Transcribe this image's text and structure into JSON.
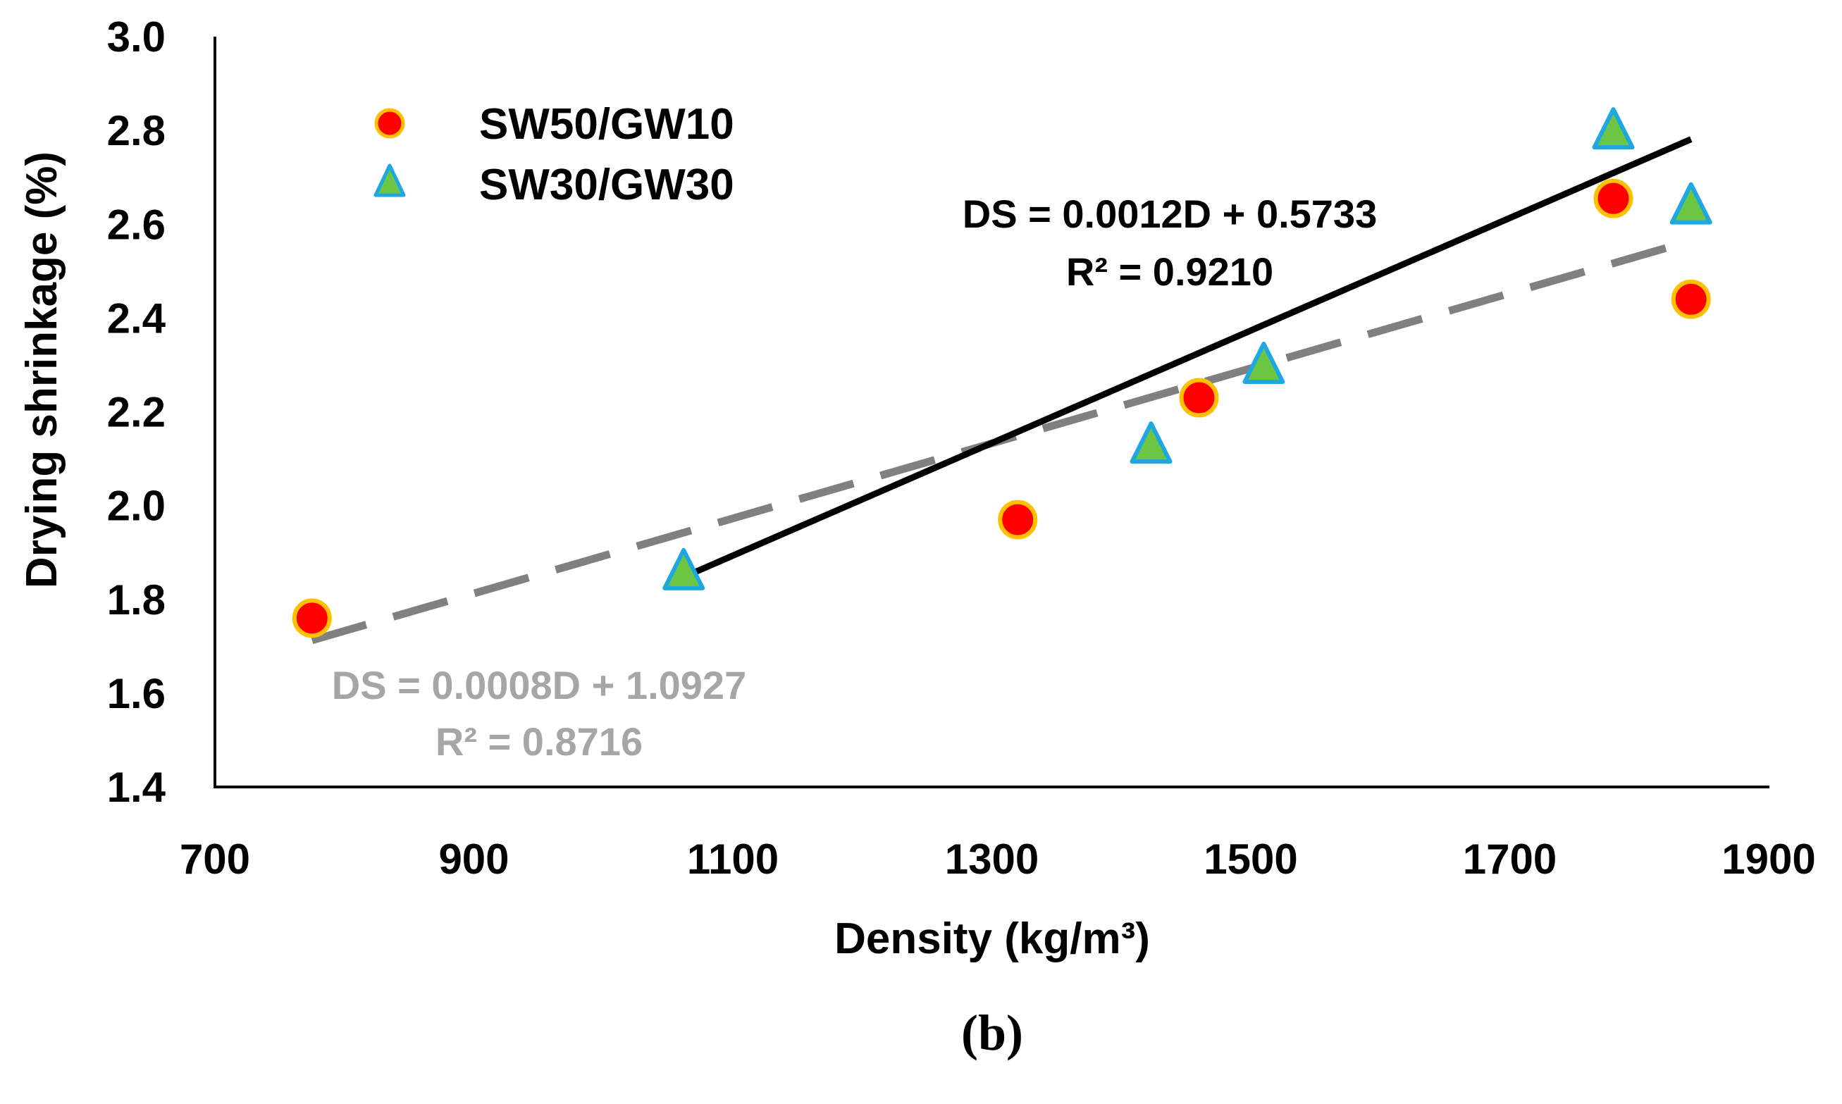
{
  "chart_data": {
    "type": "scatter",
    "title": "",
    "xlabel": "Density (kg/m³)",
    "ylabel": "Drying shrinkage (%)",
    "xlim": [
      700,
      1900
    ],
    "ylim": [
      1.4,
      3.0
    ],
    "xticks": [
      700,
      900,
      1100,
      1300,
      1500,
      1700,
      1900
    ],
    "yticks": [
      1.4,
      1.6,
      1.8,
      2.0,
      2.2,
      2.4,
      2.6,
      2.8,
      3.0
    ],
    "ytick_labels": [
      "1.4",
      "1.6",
      "1.8",
      "2.0",
      "2.2",
      "2.4",
      "2.6",
      "2.8",
      "3.0"
    ],
    "legend_position": "top-left",
    "series": [
      {
        "name": "SW50/GW10",
        "marker": "circle",
        "fill": "#ff0000",
        "edge": "#ffc000",
        "x": [
          775,
          1320,
          1460,
          1780,
          1840
        ],
        "y": [
          1.76,
          1.97,
          2.23,
          2.655,
          2.44
        ]
      },
      {
        "name": "SW30/GW30",
        "marker": "triangle",
        "fill": "#6cc644",
        "edge": "#1ea7e1",
        "x": [
          1062,
          1423,
          1510,
          1780,
          1840
        ],
        "y": [
          1.86,
          2.13,
          2.3,
          2.8,
          2.64
        ]
      }
    ],
    "trendlines": [
      {
        "series": "SW30/GW30",
        "style": "solid",
        "color": "#000000",
        "x_range": [
          1062,
          1840
        ],
        "slope": 0.0012,
        "intercept": 0.5733,
        "equation": "DS = 0.0012D + 0.5733",
        "r2": "R² = 0.9210"
      },
      {
        "series": "SW50/GW10",
        "style": "dashed",
        "color": "#808080",
        "x_range": [
          775,
          1840
        ],
        "slope": 0.0008,
        "intercept": 1.0927,
        "equation": "DS = 0.0008D + 1.0927",
        "r2": "R² = 0.8716"
      }
    ]
  },
  "caption": "(b)"
}
